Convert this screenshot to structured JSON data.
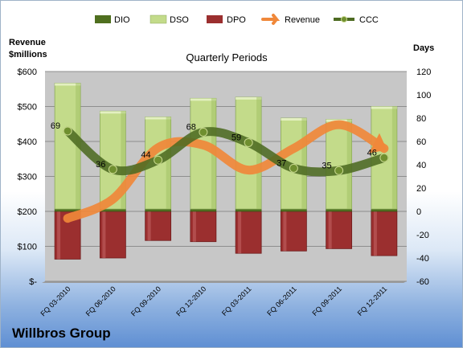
{
  "company": "Willbros Group",
  "chart_data": {
    "type": "bar",
    "title": "Quarterly Periods",
    "left_axis_title": [
      "Revenue",
      "$millions"
    ],
    "right_axis_title": "Days",
    "left_ticks": [
      "$-",
      "$100",
      "$200",
      "$300",
      "$400",
      "$500",
      "$600"
    ],
    "right_ticks": [
      "-60",
      "-40",
      "-20",
      "0",
      "20",
      "40",
      "60",
      "80",
      "100",
      "120"
    ],
    "left_ylim": [
      0,
      600
    ],
    "right_ylim": [
      -60,
      120
    ],
    "categories": [
      "FQ 03-2010",
      "FQ 06-2010",
      "FQ 09-2010",
      "FQ 12-2010",
      "FQ 03-2011",
      "FQ 06-2011",
      "FQ 09-2011",
      "FQ 12-2011"
    ],
    "legend": [
      "DIO",
      "DSO",
      "DPO",
      "Revenue",
      "CCC"
    ],
    "colors": {
      "DIO": "#4f6f1f",
      "DSO": "#c3db8a",
      "DPO": "#9b2f2f",
      "Revenue": "#f0883a",
      "CCC": "#4d6b22"
    },
    "series": [
      {
        "name": "DIO",
        "axis": "right",
        "values": [
          2,
          2,
          2,
          2,
          2,
          2,
          2,
          2
        ]
      },
      {
        "name": "DSO",
        "axis": "right",
        "values": [
          108,
          84,
          79,
          95,
          96,
          78,
          77,
          88
        ]
      },
      {
        "name": "DPO",
        "axis": "right",
        "values": [
          -41,
          -40,
          -25,
          -26,
          -36,
          -34,
          -32,
          -38
        ]
      },
      {
        "name": "Revenue",
        "axis": "left",
        "values": [
          180,
          235,
          382,
          390,
          318,
          380,
          448,
          380
        ]
      },
      {
        "name": "CCC",
        "axis": "right",
        "values": [
          69,
          36,
          44,
          68,
          59,
          37,
          35,
          46
        ]
      }
    ],
    "ccc_labels": [
      "69",
      "36",
      "44",
      "68",
      "59",
      "37",
      "35",
      "46"
    ]
  }
}
